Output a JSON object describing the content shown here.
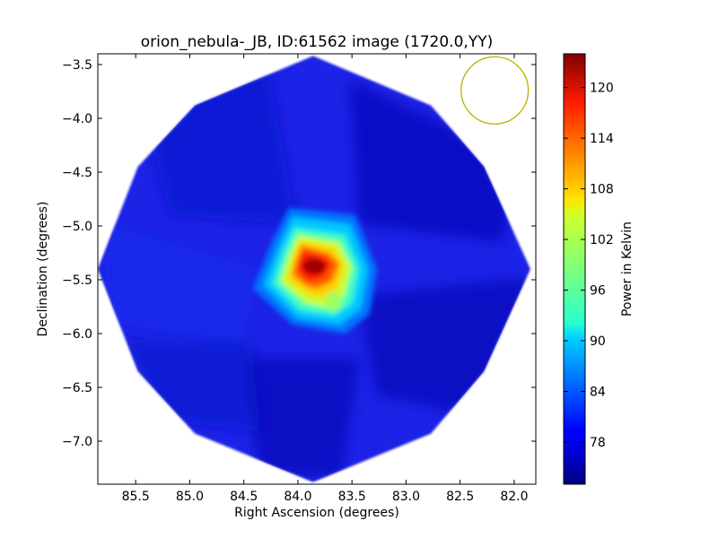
{
  "chart_data": {
    "type": "heatmap",
    "title": "orion_nebula-_JB, ID:61562 image (1720.0,YY)",
    "xlabel": "Right Ascension (degrees)",
    "ylabel": "Declination (degrees)",
    "colorbar_label": "Power in Kelvin",
    "colormap": "jet",
    "xlim": [
      85.85,
      81.8
    ],
    "ylim": [
      -7.4,
      -3.4
    ],
    "x_ticks": [
      85.5,
      85.0,
      84.5,
      84.0,
      83.5,
      83.0,
      82.5,
      82.0
    ],
    "x_tick_labels": [
      "85.5",
      "85.0",
      "84.5",
      "84.0",
      "83.5",
      "83.0",
      "82.5",
      "82.0"
    ],
    "y_ticks": [
      -3.5,
      -4.0,
      -4.5,
      -5.0,
      -5.5,
      -6.0,
      -6.5,
      -7.0
    ],
    "y_tick_labels": [
      "−3.5",
      "−4.0",
      "−4.5",
      "−5.0",
      "−5.5",
      "−6.0",
      "−6.5",
      "−7.0"
    ],
    "colorbar_range": [
      73,
      124
    ],
    "colorbar_ticks": [
      78,
      84,
      90,
      96,
      102,
      108,
      114,
      120
    ],
    "colorbar_tick_labels": [
      "78",
      "84",
      "90",
      "96",
      "102",
      "108",
      "114",
      "120"
    ],
    "map_center": {
      "ra": 83.86,
      "dec": -5.4
    },
    "map_octagon_vertices": [
      [
        83.86,
        -3.42
      ],
      [
        82.77,
        -3.88
      ],
      [
        82.28,
        -4.45
      ],
      [
        81.85,
        -5.4
      ],
      [
        82.28,
        -6.35
      ],
      [
        82.77,
        -6.93
      ],
      [
        83.86,
        -7.38
      ],
      [
        84.95,
        -6.93
      ],
      [
        85.48,
        -6.35
      ],
      [
        85.85,
        -5.4
      ],
      [
        85.48,
        -4.45
      ],
      [
        84.95,
        -3.88
      ]
    ],
    "background_level": 76,
    "peak": {
      "ra": 83.88,
      "dec": -5.37,
      "value": 122
    },
    "beam_circle": {
      "ra": 82.18,
      "dec": -3.74,
      "radius_deg": 0.31,
      "color": "#bfb100"
    }
  }
}
